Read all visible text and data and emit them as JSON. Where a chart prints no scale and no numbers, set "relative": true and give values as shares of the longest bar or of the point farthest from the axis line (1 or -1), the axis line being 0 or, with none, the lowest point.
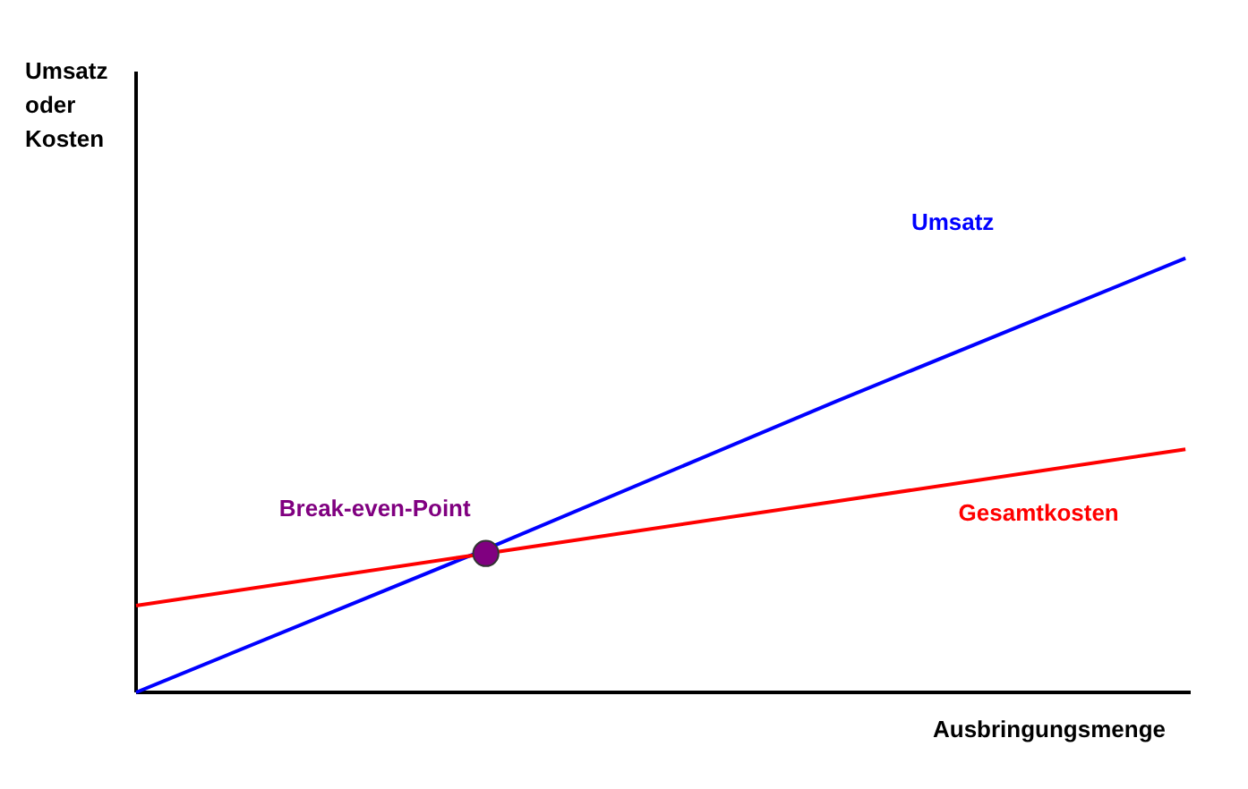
{
  "chart_data": {
    "type": "line",
    "relative": true,
    "xlabel": "Ausbringungsmenge",
    "ylabel": "Umsatz oder Kosten",
    "marker": "none",
    "line_style": "solid",
    "categories": [
      null,
      null,
      null,
      null
    ],
    "series": [
      {
        "name": "Umsatz",
        "color": "#0000ff",
        "values": [
          0,
          0.33,
          0.67,
          1
        ]
      },
      {
        "name": "Gesamtkosten",
        "color": "#ff0000",
        "values": [
          0.2,
          0.32,
          0.44,
          0.56
        ]
      },
      {
        "name": "Break-even-Point",
        "color": "#800080",
        "marker": "circle",
        "values": [
          null,
          0.32,
          null,
          null
        ]
      }
    ]
  }
}
